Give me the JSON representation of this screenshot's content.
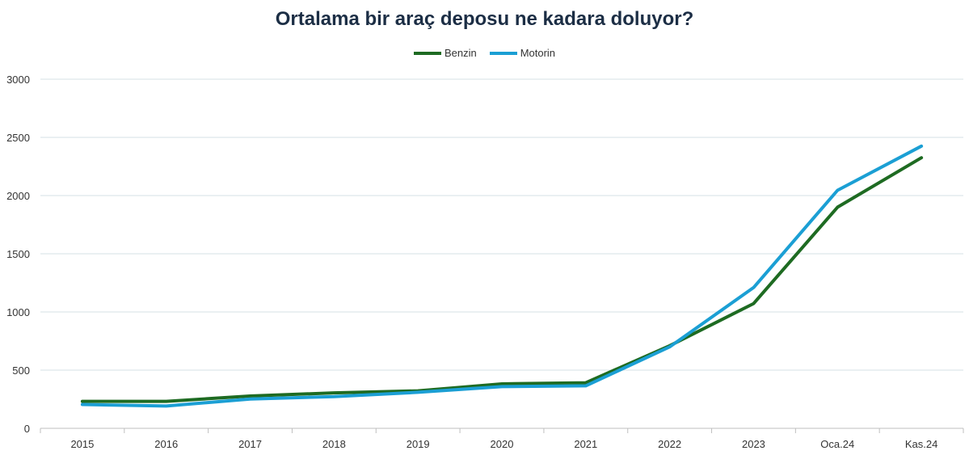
{
  "chart_data": {
    "type": "line",
    "title": "Ortalama bir araç deposu ne kadara doluyor?",
    "categories": [
      "2015",
      "2016",
      "2017",
      "2018",
      "2019",
      "2020",
      "2021",
      "2022",
      "2023",
      "Oca.24",
      "Kas.24"
    ],
    "series": [
      {
        "name": "Benzin",
        "color": "#1e6b22",
        "values": [
          232,
          232,
          278,
          305,
          322,
          382,
          392,
          710,
          1072,
          1900,
          2325
        ]
      },
      {
        "name": "Motorin",
        "color": "#1b9fd4",
        "values": [
          205,
          192,
          252,
          273,
          310,
          358,
          365,
          700,
          1210,
          2045,
          2425
        ]
      }
    ],
    "yticks": [
      0,
      500,
      1000,
      1500,
      2000,
      2500,
      3000
    ],
    "ylim": [
      0,
      3000
    ],
    "xlabel": "",
    "ylabel": "",
    "grid": true,
    "legend_position": "top"
  }
}
